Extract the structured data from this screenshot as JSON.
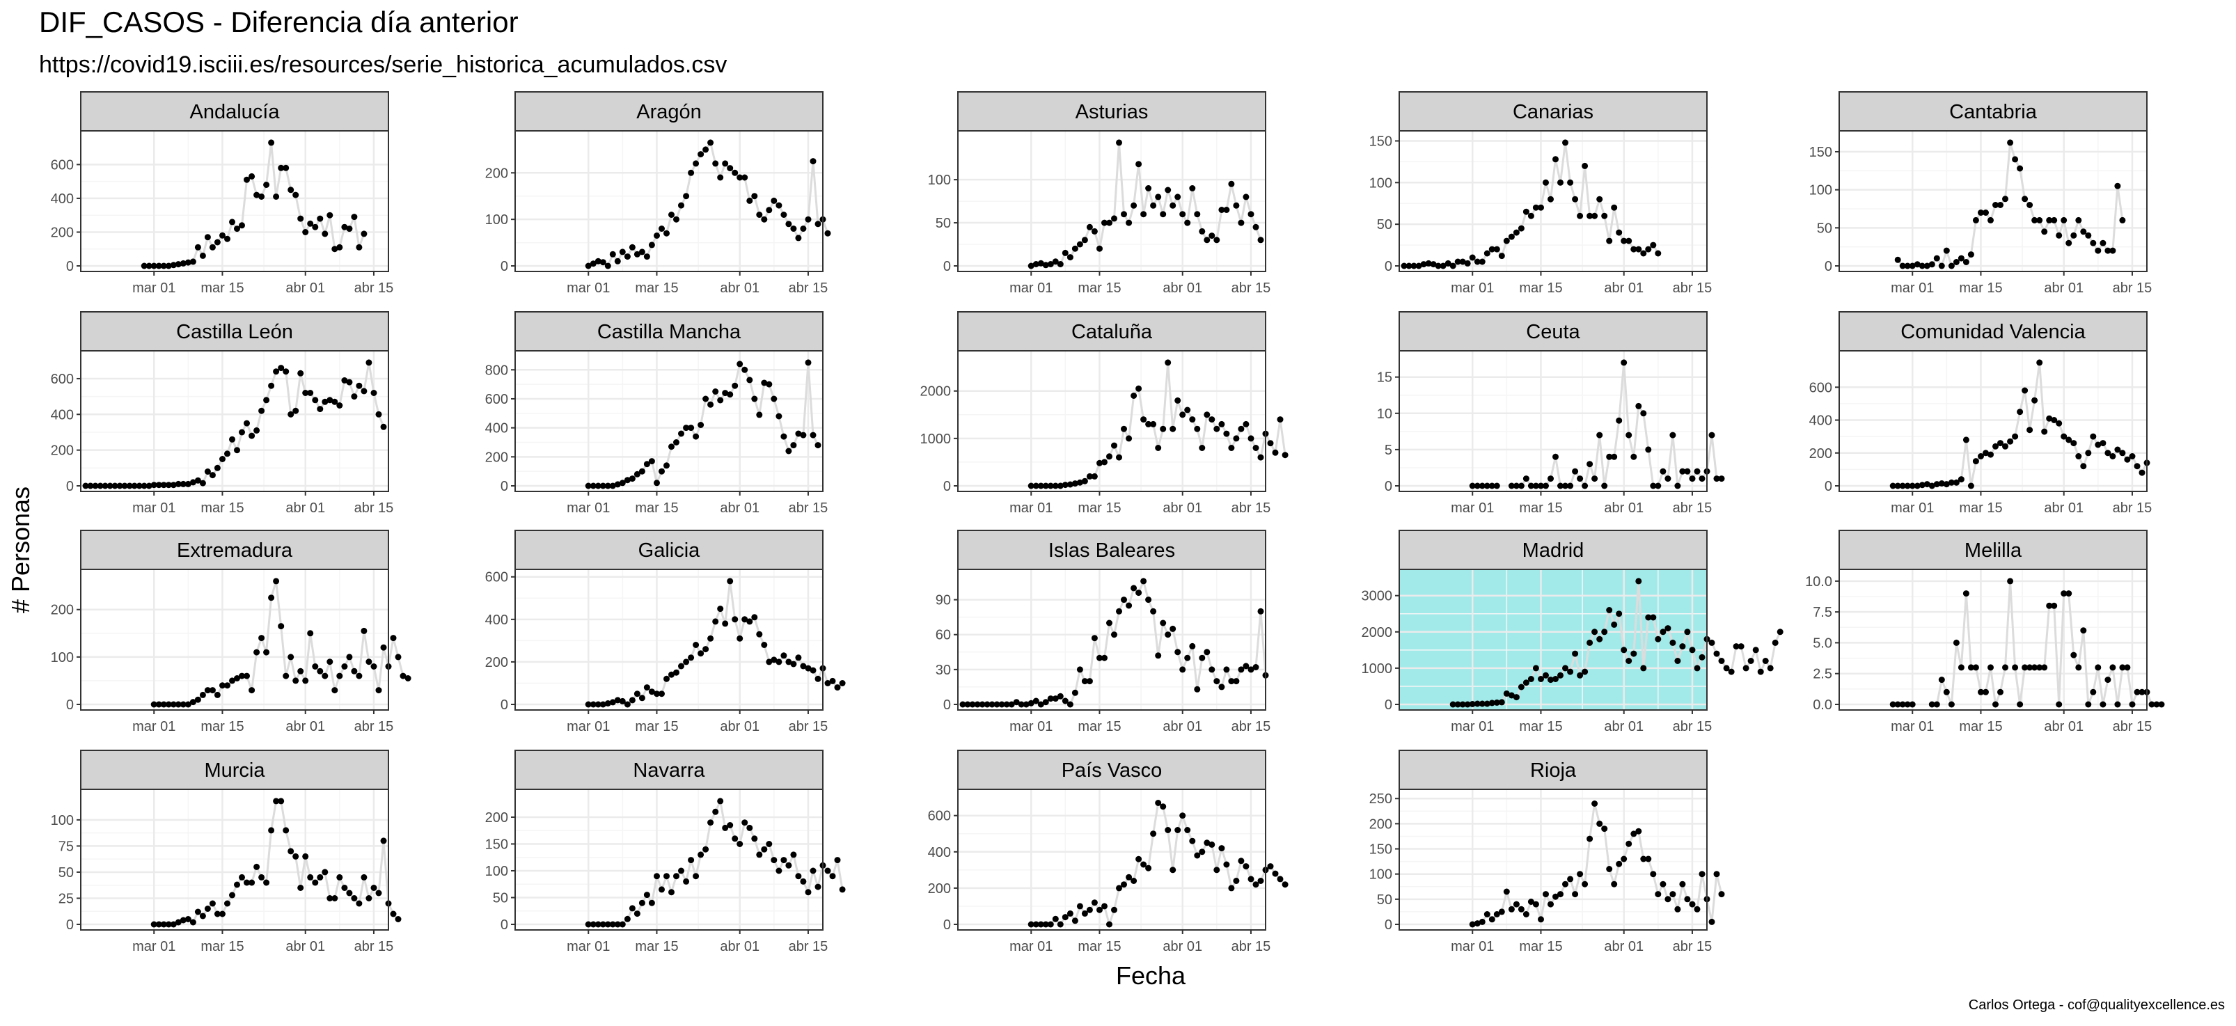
{
  "title": "DIF_CASOS - Diferencia día anterior",
  "subtitle": "https://covid19.isciii.es/resources/serie_historica_acumulados.csv",
  "caption": "Carlos Ortega - cof@qualityexcellence.es",
  "colors": {
    "strip": "#d3d3d3",
    "panel_bg": "#ffffff",
    "highlight_bg": "#a2eaea",
    "grid_major": "#ebebeb",
    "grid_minor": "#f5f5f5",
    "line": "#dcdcdc",
    "point": "#000000",
    "text": "#000000",
    "tick_text": "#4d4d4d"
  },
  "chart_data": {
    "type": "scatter",
    "title": "DIF_CASOS - Diferencia día anterior",
    "subtitle": "https://covid19.isciii.es/resources/serie_historica_acumulados.csv",
    "xlabel": "Fecha",
    "ylabel": "# Personas",
    "x_ticks": [
      "mar 01",
      "mar 15",
      "abr 01",
      "abr 15"
    ],
    "x_tick_days": [
      0,
      14,
      31,
      45
    ],
    "x_range_days": [
      -15,
      48
    ],
    "x_unit": "days relative to mar 01",
    "highlight": "Madrid",
    "grid": true,
    "series_style": "points joined by light grey line",
    "panels": [
      {
        "name": "Andalucía",
        "x_start": -2,
        "ymax": 730,
        "yticks": [
          0,
          200,
          400,
          600
        ],
        "values": [
          0,
          0,
          0,
          0,
          0,
          0,
          5,
          10,
          15,
          20,
          25,
          110,
          60,
          170,
          110,
          140,
          180,
          160,
          260,
          220,
          240,
          510,
          530,
          420,
          410,
          480,
          730,
          410,
          580,
          580,
          450,
          420,
          280,
          200,
          250,
          230,
          280,
          190,
          300,
          100,
          110,
          230,
          220,
          290,
          110,
          190
        ]
      },
      {
        "name": "Aragón",
        "x_start": 0,
        "ymax": 265,
        "yticks": [
          0,
          100,
          200
        ],
        "values": [
          0,
          5,
          10,
          8,
          0,
          25,
          10,
          30,
          20,
          40,
          25,
          30,
          20,
          45,
          65,
          80,
          70,
          110,
          100,
          130,
          150,
          200,
          220,
          240,
          250,
          265,
          220,
          190,
          220,
          210,
          200,
          190,
          190,
          140,
          150,
          110,
          100,
          120,
          140,
          130,
          110,
          90,
          80,
          60,
          80,
          100,
          225,
          90,
          100,
          70
        ]
      },
      {
        "name": "Asturias",
        "x_start": 0,
        "ymax": 143,
        "yticks": [
          0,
          50,
          100
        ],
        "values": [
          0,
          2,
          3,
          1,
          2,
          5,
          2,
          15,
          10,
          20,
          25,
          30,
          45,
          40,
          20,
          50,
          50,
          55,
          143,
          60,
          50,
          70,
          118,
          60,
          90,
          70,
          80,
          60,
          88,
          70,
          80,
          60,
          50,
          90,
          60,
          40,
          30,
          35,
          30,
          65,
          65,
          95,
          70,
          50,
          80,
          60,
          45,
          30
        ]
      },
      {
        "name": "Canarias",
        "x_start": -14,
        "ymax": 148,
        "yticks": [
          0,
          50,
          100,
          150
        ],
        "values": [
          0,
          0,
          0,
          0,
          2,
          3,
          2,
          0,
          0,
          3,
          0,
          5,
          5,
          3,
          10,
          5,
          5,
          15,
          20,
          20,
          12,
          30,
          35,
          40,
          45,
          65,
          60,
          70,
          70,
          100,
          80,
          128,
          100,
          148,
          100,
          80,
          60,
          120,
          60,
          60,
          80,
          60,
          30,
          70,
          40,
          30,
          30,
          20,
          20,
          15,
          20,
          25,
          15
        ]
      },
      {
        "name": "Cantabria",
        "x_start": -3,
        "ymax": 162,
        "yticks": [
          0,
          50,
          100,
          150
        ],
        "values": [
          8,
          0,
          0,
          0,
          2,
          0,
          0,
          2,
          10,
          0,
          20,
          0,
          5,
          10,
          5,
          15,
          60,
          70,
          70,
          60,
          80,
          80,
          88,
          162,
          140,
          128,
          88,
          80,
          60,
          60,
          45,
          60,
          60,
          40,
          60,
          30,
          40,
          60,
          45,
          40,
          30,
          20,
          30,
          20,
          20,
          105,
          60
        ]
      },
      {
        "name": "Castilla León",
        "x_start": -14,
        "ymax": 690,
        "yticks": [
          0,
          200,
          400,
          600
        ],
        "values": [
          0,
          0,
          0,
          0,
          0,
          0,
          0,
          0,
          0,
          0,
          0,
          0,
          0,
          0,
          5,
          5,
          5,
          5,
          5,
          10,
          10,
          10,
          20,
          30,
          15,
          80,
          60,
          100,
          150,
          180,
          260,
          200,
          300,
          350,
          280,
          310,
          420,
          480,
          560,
          640,
          660,
          640,
          400,
          420,
          630,
          520,
          520,
          480,
          430,
          470,
          480,
          470,
          450,
          590,
          580,
          500,
          560,
          530,
          690,
          520,
          400,
          330
        ]
      },
      {
        "name": "Castilla Mancha",
        "x_start": 0,
        "ymax": 850,
        "yticks": [
          0,
          200,
          400,
          600,
          800
        ],
        "values": [
          0,
          0,
          0,
          0,
          0,
          0,
          10,
          20,
          40,
          50,
          80,
          100,
          150,
          170,
          20,
          100,
          140,
          270,
          300,
          360,
          400,
          400,
          340,
          420,
          600,
          560,
          650,
          590,
          640,
          630,
          690,
          840,
          800,
          730,
          600,
          490,
          710,
          700,
          600,
          480,
          340,
          240,
          280,
          360,
          350,
          850,
          350,
          280
        ]
      },
      {
        "name": "Cataluña",
        "x_start": 0,
        "ymax": 2600,
        "yticks": [
          0,
          1000,
          2000
        ],
        "values": [
          0,
          0,
          0,
          0,
          0,
          0,
          0,
          20,
          30,
          50,
          70,
          100,
          200,
          200,
          480,
          500,
          620,
          850,
          600,
          1200,
          1000,
          1900,
          2050,
          1400,
          1300,
          1300,
          800,
          1200,
          2600,
          1200,
          1800,
          1500,
          1600,
          1400,
          1200,
          800,
          1500,
          1400,
          1200,
          1300,
          1100,
          800,
          1000,
          1200,
          1300,
          1000,
          800,
          600,
          1100,
          900,
          700,
          1400,
          650
        ]
      },
      {
        "name": "Ceuta",
        "x_start": 0,
        "ymax": 17,
        "yticks": [
          0,
          5,
          10,
          15
        ],
        "values": [
          0,
          0,
          0,
          0,
          0,
          0,
          null,
          null,
          0,
          0,
          0,
          1,
          0,
          0,
          0,
          0,
          1,
          4,
          0,
          0,
          0,
          2,
          1,
          0,
          3,
          1,
          7,
          0,
          4,
          4,
          9,
          17,
          7,
          4,
          11,
          10,
          5,
          0,
          0,
          2,
          1,
          7,
          0,
          2,
          2,
          1,
          2,
          1,
          2,
          7,
          1,
          1
        ]
      },
      {
        "name": "Comunidad Valencia",
        "x_start": -4,
        "ymax": 750,
        "yticks": [
          0,
          200,
          400,
          600
        ],
        "values": [
          0,
          0,
          0,
          0,
          0,
          0,
          5,
          10,
          0,
          10,
          15,
          10,
          20,
          20,
          40,
          280,
          0,
          150,
          180,
          200,
          190,
          240,
          260,
          240,
          270,
          300,
          450,
          580,
          340,
          520,
          750,
          330,
          410,
          400,
          380,
          300,
          280,
          260,
          180,
          120,
          200,
          300,
          250,
          260,
          200,
          180,
          220,
          200,
          160,
          180,
          120,
          80,
          140
        ]
      },
      {
        "name": "Extremadura",
        "x_start": 0,
        "ymax": 260,
        "yticks": [
          0,
          100,
          200
        ],
        "values": [
          0,
          0,
          0,
          0,
          0,
          0,
          0,
          0,
          5,
          10,
          20,
          30,
          30,
          20,
          40,
          40,
          50,
          55,
          60,
          60,
          30,
          110,
          140,
          110,
          225,
          260,
          165,
          60,
          100,
          50,
          70,
          50,
          150,
          80,
          70,
          60,
          90,
          30,
          60,
          80,
          100,
          70,
          60,
          155,
          90,
          80,
          30,
          120,
          80,
          140,
          100,
          60,
          55
        ]
      },
      {
        "name": "Galicia",
        "x_start": 0,
        "ymax": 580,
        "yticks": [
          0,
          200,
          400,
          600
        ],
        "values": [
          0,
          0,
          0,
          0,
          5,
          10,
          20,
          15,
          0,
          20,
          50,
          30,
          80,
          60,
          50,
          50,
          120,
          140,
          150,
          180,
          200,
          220,
          280,
          240,
          260,
          310,
          390,
          450,
          380,
          580,
          400,
          310,
          400,
          390,
          410,
          330,
          280,
          200,
          210,
          200,
          230,
          200,
          190,
          220,
          180,
          170,
          160,
          120,
          170,
          100,
          110,
          80,
          100
        ]
      },
      {
        "name": "Islas Baleares",
        "x_start": -14,
        "ymax": 106,
        "yticks": [
          0,
          30,
          60,
          90
        ],
        "values": [
          0,
          0,
          0,
          0,
          0,
          0,
          0,
          0,
          0,
          0,
          0,
          2,
          0,
          0,
          1,
          3,
          0,
          2,
          5,
          5,
          7,
          3,
          0,
          10,
          30,
          20,
          20,
          57,
          40,
          40,
          70,
          60,
          80,
          90,
          85,
          100,
          96,
          106,
          90,
          80,
          42,
          70,
          60,
          65,
          45,
          30,
          40,
          50,
          13,
          40,
          45,
          30,
          20,
          15,
          30,
          20,
          20,
          30,
          33,
          30,
          32,
          80,
          25
        ]
      },
      {
        "name": "Madrid",
        "x_start": -4,
        "ymax": 3400,
        "yticks": [
          0,
          1000,
          2000,
          3000
        ],
        "values": [
          0,
          0,
          0,
          0,
          10,
          20,
          20,
          20,
          40,
          50,
          60,
          300,
          250,
          200,
          480,
          600,
          700,
          1000,
          700,
          800,
          680,
          700,
          800,
          1000,
          900,
          1400,
          800,
          900,
          1700,
          2000,
          1800,
          2000,
          2600,
          2200,
          2500,
          1500,
          1200,
          1400,
          3400,
          1000,
          2400,
          2400,
          1800,
          2000,
          2100,
          1700,
          1200,
          1600,
          2000,
          1500,
          1000,
          1300,
          1800,
          1700,
          1400,
          1200,
          1000,
          900,
          1600,
          1600,
          1000,
          1200,
          1500,
          900,
          1200,
          1000,
          1700,
          2000
        ]
      },
      {
        "name": "Melilla",
        "x_start": -4,
        "ymax": 10,
        "yticks": [
          0.0,
          2.5,
          5.0,
          7.5,
          10.0
        ],
        "values": [
          0,
          0,
          0,
          0,
          0,
          null,
          null,
          null,
          0,
          0,
          2,
          1,
          0,
          5,
          3,
          9,
          3,
          3,
          1,
          1,
          3,
          0,
          1,
          3,
          10,
          3,
          0,
          3,
          3,
          3,
          3,
          3,
          8,
          8,
          0,
          9,
          9,
          4,
          3,
          6,
          0,
          1,
          3,
          0,
          2,
          3,
          0,
          3,
          3,
          0,
          1,
          1,
          1,
          0,
          0,
          0
        ]
      },
      {
        "name": "Murcia",
        "x_start": 0,
        "ymax": 118,
        "yticks": [
          0,
          25,
          50,
          75,
          100
        ],
        "values": [
          0,
          0,
          0,
          0,
          0,
          2,
          4,
          5,
          2,
          12,
          8,
          15,
          20,
          10,
          10,
          20,
          28,
          38,
          45,
          40,
          40,
          55,
          45,
          40,
          90,
          118,
          118,
          90,
          70,
          65,
          35,
          65,
          45,
          40,
          45,
          50,
          25,
          25,
          45,
          35,
          30,
          25,
          20,
          45,
          25,
          35,
          30,
          80,
          20,
          10,
          5
        ]
      },
      {
        "name": "Navarra",
        "x_start": 0,
        "ymax": 230,
        "yticks": [
          0,
          50,
          100,
          150,
          200
        ],
        "values": [
          0,
          0,
          0,
          0,
          0,
          0,
          0,
          0,
          10,
          30,
          20,
          40,
          55,
          40,
          90,
          65,
          90,
          60,
          90,
          100,
          80,
          120,
          90,
          130,
          140,
          190,
          210,
          230,
          180,
          185,
          160,
          150,
          190,
          180,
          160,
          130,
          140,
          150,
          120,
          100,
          120,
          110,
          130,
          90,
          80,
          60,
          100,
          70,
          110,
          100,
          90,
          120,
          65
        ]
      },
      {
        "name": "País Vasco",
        "x_start": 0,
        "ymax": 680,
        "yticks": [
          0,
          200,
          400,
          600
        ],
        "values": [
          0,
          0,
          0,
          0,
          0,
          30,
          0,
          40,
          60,
          20,
          100,
          60,
          80,
          120,
          80,
          100,
          0,
          80,
          200,
          220,
          260,
          240,
          360,
          330,
          310,
          500,
          670,
          650,
          520,
          300,
          520,
          600,
          520,
          460,
          380,
          400,
          450,
          440,
          300,
          420,
          330,
          200,
          240,
          350,
          320,
          250,
          220,
          240,
          300,
          320,
          280,
          250,
          220
        ]
      },
      {
        "name": "Rioja",
        "x_start": 0,
        "ymax": 245,
        "yticks": [
          0,
          50,
          100,
          150,
          200,
          250
        ],
        "values": [
          0,
          2,
          5,
          20,
          10,
          20,
          25,
          65,
          30,
          40,
          30,
          20,
          45,
          40,
          10,
          60,
          40,
          55,
          60,
          80,
          90,
          60,
          100,
          80,
          170,
          240,
          200,
          190,
          110,
          80,
          120,
          130,
          160,
          180,
          185,
          130,
          130,
          100,
          60,
          80,
          50,
          60,
          30,
          80,
          50,
          40,
          30,
          100,
          50,
          5,
          100,
          60
        ]
      }
    ]
  }
}
